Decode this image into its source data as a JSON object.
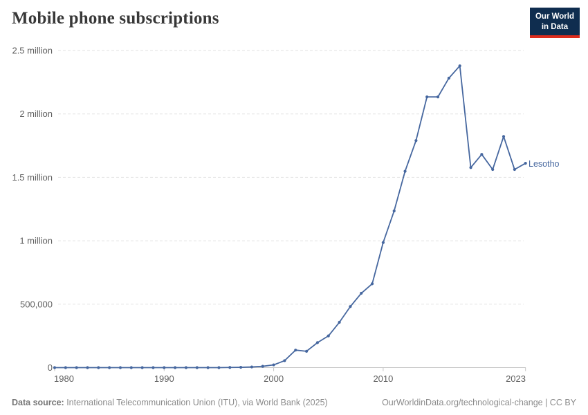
{
  "header": {
    "title": "Mobile phone subscriptions",
    "logo_line1": "Our World",
    "logo_line2": "in Data"
  },
  "footer": {
    "source_label": "Data source:",
    "source_text": " International Telecommunication Union (ITU), via World Bank (2025)",
    "credit": "OurWorldinData.org/technological-change | CC BY"
  },
  "colors": {
    "line": "#46679f",
    "grid": "#e2e2e2",
    "axis": "#c4c4c4",
    "tick_text": "#5f5f5f",
    "title_text": "#383838",
    "footer_text": "#8b8b8b",
    "logo_bg": "#0f2d4f",
    "logo_red": "#dd2c1d"
  },
  "chart_data": {
    "type": "line",
    "title": "Mobile phone subscriptions",
    "entity_label": "Lesotho",
    "xlabel": "",
    "ylabel": "",
    "xlim": [
      1980,
      2023
    ],
    "ylim": [
      0,
      2500000
    ],
    "grid": "horizontal-dashed",
    "legend_position": "end-of-line-label",
    "x": [
      1980,
      1981,
      1982,
      1983,
      1984,
      1985,
      1986,
      1987,
      1988,
      1989,
      1990,
      1991,
      1992,
      1993,
      1994,
      1995,
      1996,
      1997,
      1998,
      1999,
      2000,
      2001,
      2002,
      2003,
      2004,
      2005,
      2006,
      2007,
      2008,
      2009,
      2010,
      2011,
      2012,
      2013,
      2014,
      2015,
      2016,
      2017,
      2018,
      2019,
      2020,
      2021,
      2022,
      2023
    ],
    "series": [
      {
        "name": "Lesotho",
        "values": [
          0,
          0,
          0,
          0,
          0,
          0,
          0,
          0,
          0,
          0,
          0,
          0,
          0,
          0,
          0,
          0,
          1300,
          2500,
          5200,
          10200,
          21600,
          55000,
          138000,
          129000,
          197000,
          250000,
          357000,
          481000,
          586000,
          661000,
          986000,
          1235000,
          1548000,
          1790000,
          2134000,
          2134000,
          2282000,
          2379000,
          1577000,
          1681000,
          1562000,
          1822000,
          1562000,
          1611000
        ]
      }
    ],
    "y_ticks": [
      {
        "value": 0,
        "label": "0"
      },
      {
        "value": 500000,
        "label": "500,000"
      },
      {
        "value": 1000000,
        "label": "1 million"
      },
      {
        "value": 1500000,
        "label": "1.5 million"
      },
      {
        "value": 2000000,
        "label": "2 million"
      },
      {
        "value": 2500000,
        "label": "2.5 million"
      }
    ],
    "x_ticks": [
      {
        "year": 1980,
        "label": "1980"
      },
      {
        "year": 1990,
        "label": "1990"
      },
      {
        "year": 2000,
        "label": "2000"
      },
      {
        "year": 2010,
        "label": "2010"
      },
      {
        "year": 2023,
        "label": "2023"
      }
    ]
  }
}
